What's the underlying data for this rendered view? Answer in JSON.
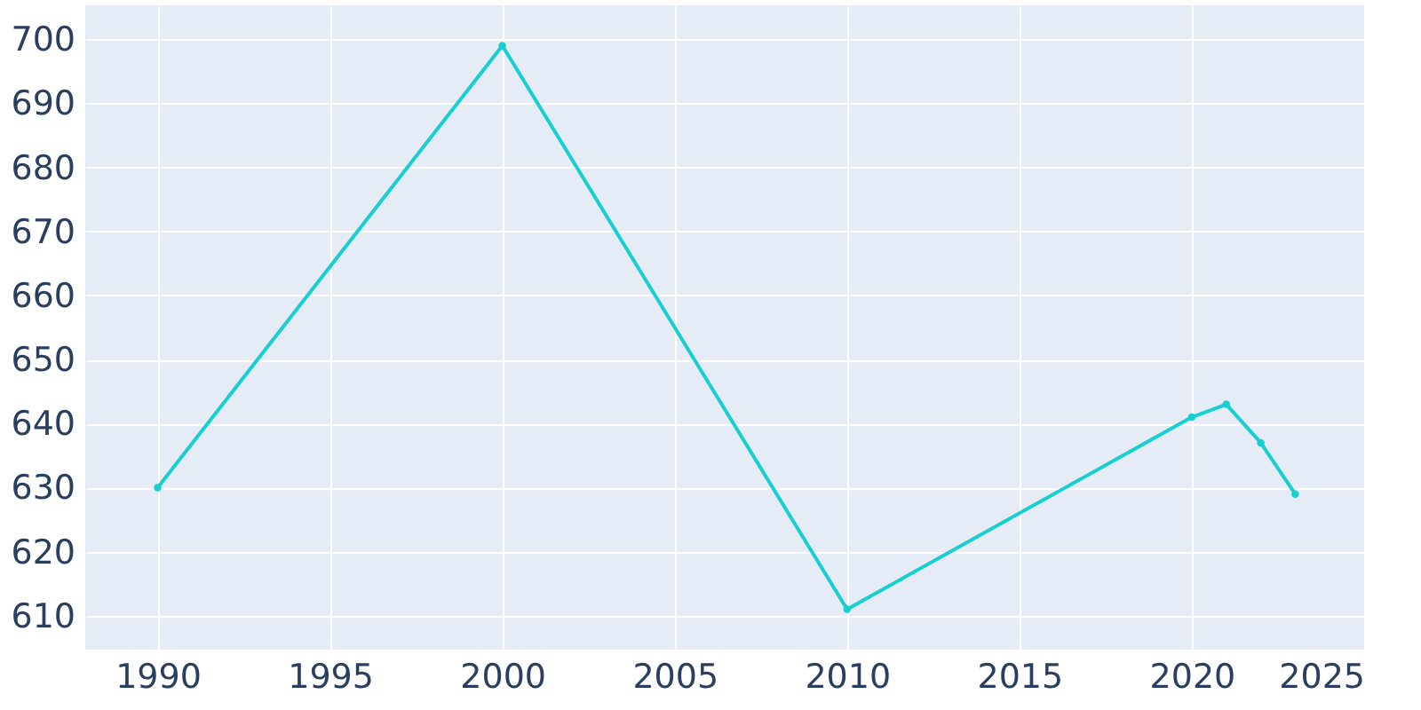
{
  "chart_data": {
    "type": "line",
    "x": [
      1990,
      2000,
      2010,
      2020,
      2021,
      2022,
      2023
    ],
    "series": [
      {
        "color": "#17cfd0",
        "values": [
          630,
          699,
          611,
          641,
          643,
          637,
          629
        ]
      }
    ],
    "xlim": [
      1987.9,
      2025
    ],
    "xticks": [
      1990,
      1995,
      2000,
      2005,
      2010,
      2015,
      2020,
      2025
    ],
    "ylim": [
      604.7,
      705.3
    ],
    "yticks": [
      610,
      620,
      630,
      640,
      650,
      660,
      670,
      680,
      690,
      700
    ],
    "grid": true,
    "marker": "circle",
    "line_style": "solid"
  }
}
